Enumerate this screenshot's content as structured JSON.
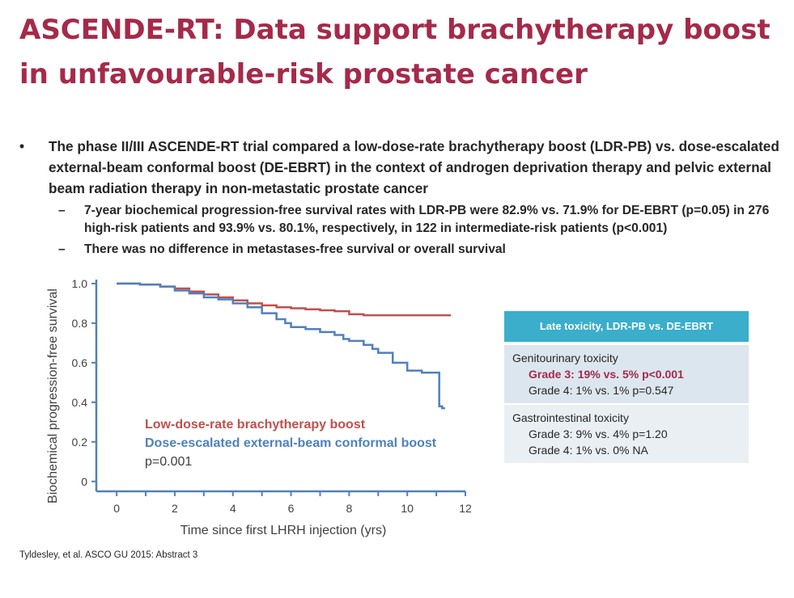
{
  "title": {
    "line1": "ASCENDE-RT: Data support brachytherapy boost",
    "line2": "in unfavourable-risk prostate cancer"
  },
  "bullets": {
    "main": "The phase II/III ASCENDE-RT trial compared a low-dose-rate brachytherapy boost (LDR-PB) vs. dose-escalated external-beam conformal boost (DE-EBRT) in the context of androgen deprivation therapy and pelvic external beam radiation therapy in non-metastatic prostate cancer",
    "sub1": "7-year biochemical progression-free survival rates with LDR-PB were 82.9% vs. 71.9% for DE-EBRT (p=0.05) in 276 high-risk patients and 93.9% vs. 80.1%, respectively, in 122 in intermediate-risk patients (p<0.001)",
    "sub2": "There was no difference in metastases-free survival or overall survival",
    "bullet_glyph": "•",
    "dash_glyph": "–"
  },
  "chart_data": {
    "type": "line",
    "ylabel": "Biochemical progression-free survival",
    "xlabel": "Time since first LHRH injection (yrs)",
    "xlim": [
      -0.7,
      12
    ],
    "ylim": [
      -0.05,
      1.02
    ],
    "xticks": [
      0,
      2,
      4,
      6,
      8,
      10,
      12
    ],
    "yticks": [
      0,
      0.2,
      0.4,
      0.6,
      0.8,
      1.0
    ],
    "ytick_labels": [
      "0",
      "0.2",
      "0.4",
      "0.6",
      "0.8",
      "1.0"
    ],
    "series": [
      {
        "name": "Low-dose-rate brachytherapy boost",
        "color": "#c0504d",
        "x": [
          0,
          0.8,
          1.5,
          2.0,
          2.5,
          3.0,
          3.5,
          4.0,
          4.5,
          5.0,
          5.5,
          6.0,
          6.5,
          7.0,
          7.5,
          8.0,
          8.5,
          9.0,
          10.0,
          11.0,
          11.5
        ],
        "y": [
          1.0,
          0.995,
          0.985,
          0.975,
          0.96,
          0.945,
          0.93,
          0.915,
          0.9,
          0.89,
          0.88,
          0.875,
          0.87,
          0.865,
          0.86,
          0.845,
          0.84,
          0.84,
          0.84,
          0.84,
          0.84
        ]
      },
      {
        "name": "Dose-escalated external-beam conformal boost",
        "color": "#4f81bd",
        "x": [
          0,
          0.8,
          1.5,
          2.0,
          2.5,
          3.0,
          3.5,
          4.0,
          4.5,
          5.0,
          5.5,
          5.8,
          6.0,
          6.5,
          7.0,
          7.5,
          7.8,
          8.0,
          8.5,
          8.8,
          9.0,
          9.5,
          9.9,
          10.0,
          10.5,
          11.0,
          11.1,
          11.2,
          11.3
        ],
        "y": [
          1.0,
          0.995,
          0.985,
          0.965,
          0.95,
          0.93,
          0.92,
          0.9,
          0.88,
          0.85,
          0.82,
          0.8,
          0.78,
          0.77,
          0.755,
          0.74,
          0.72,
          0.71,
          0.69,
          0.67,
          0.65,
          0.6,
          0.6,
          0.56,
          0.55,
          0.55,
          0.38,
          0.37,
          0.37
        ]
      }
    ],
    "annotation_pvalue": "p=0.001",
    "annotation_color": "#404040"
  },
  "toxicity": {
    "header": "Late toxicity, LDR-PB vs. DE-EBRT",
    "gu_title": "Genitourinary toxicity",
    "gu_grade3": "Grade 3: 19% vs. 5% p<0.001",
    "gu_grade4": "Grade 4: 1% vs. 1% p=0.547",
    "gi_title": "Gastrointestinal toxicity",
    "gi_grade3": "Grade 3: 9% vs. 4% p=1.20",
    "gi_grade4": "Grade 4: 1% vs. 0% NA",
    "header_color": "#3aaecb",
    "highlight_color": "#a52a4a"
  },
  "reference": "Tyldesley, et al. ASCO GU 2015: Abstract 3"
}
